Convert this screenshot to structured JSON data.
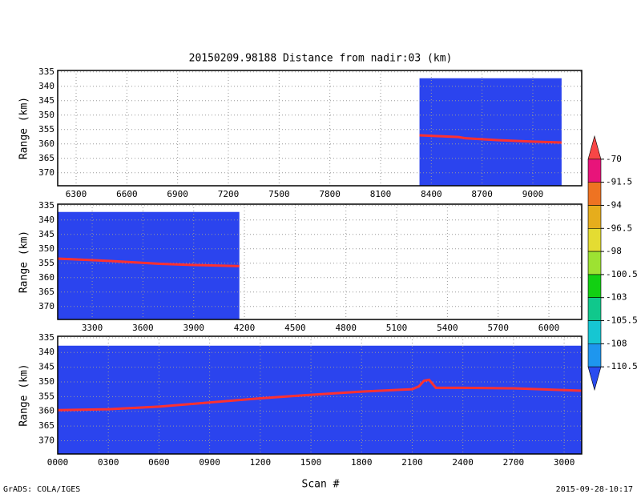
{
  "title": "20150209.98188    Distance from nadir:03 (km)",
  "x_label": "Scan #",
  "credit": "GrADS: COLA/IGES",
  "timestamp": "2015-09-28-10:17",
  "colorbar": {
    "levels": [
      -70,
      -91.5,
      -94,
      -96.5,
      -98,
      -100.5,
      -103,
      -105.5,
      -108,
      -110.5
    ],
    "colors": [
      "#f84646",
      "#e8147a",
      "#ee7322",
      "#e6ad1c",
      "#e4dc32",
      "#9de232",
      "#12d012",
      "#10c88c",
      "#16c6d2",
      "#1e96ee",
      "#2a4cf0"
    ]
  },
  "chart_data": [
    {
      "type": "line",
      "y_label": "Range (km)",
      "xlim": [
        6191,
        9289
      ],
      "xticks": [
        6300,
        6600,
        6900,
        7200,
        7500,
        7800,
        8100,
        8400,
        8700,
        9000
      ],
      "ylim": [
        334.5,
        374.5
      ],
      "yticks": [
        335,
        340,
        345,
        350,
        355,
        360,
        365,
        370
      ],
      "grid": true,
      "signal_region": {
        "xlim": [
          8330,
          9170
        ],
        "ylim": [
          337.2,
          374.5
        ],
        "color": "#2b44ee"
      },
      "series": [
        {
          "color": "#ff3030",
          "x": [
            8330,
            8560,
            8600,
            8800,
            9000,
            9170
          ],
          "values": [
            357,
            357.6,
            358,
            358.7,
            359.2,
            359.5
          ]
        }
      ]
    },
    {
      "type": "line",
      "y_label": "Range (km)",
      "xlim": [
        3096,
        6194
      ],
      "xticks": [
        3300,
        3600,
        3900,
        4200,
        4500,
        4800,
        5100,
        5400,
        5700,
        6000
      ],
      "ylim": [
        334.5,
        374.5
      ],
      "yticks": [
        335,
        340,
        345,
        350,
        355,
        360,
        365,
        370
      ],
      "grid": true,
      "signal_region": {
        "xlim": [
          3096,
          4170
        ],
        "ylim": [
          337.2,
          374.5
        ],
        "color": "#2b44ee"
      },
      "series": [
        {
          "color": "#ff3030",
          "x": [
            3096,
            3400,
            3700,
            3900,
            4170
          ],
          "values": [
            353.4,
            354.2,
            355.2,
            355.6,
            356
          ]
        }
      ]
    },
    {
      "type": "line",
      "y_label": "Range (km)",
      "xlim": [
        0,
        3104
      ],
      "xticks": [
        {
          "value": 0,
          "label": "0000"
        },
        {
          "value": 300,
          "label": "0300"
        },
        {
          "value": 600,
          "label": "0600"
        },
        {
          "value": 900,
          "label": "0900"
        },
        1200,
        1500,
        1800,
        2100,
        2400,
        2700,
        3000
      ],
      "ylim": [
        334.5,
        374.5
      ],
      "yticks": [
        335,
        340,
        345,
        350,
        355,
        360,
        365,
        370
      ],
      "grid": true,
      "signal_region": {
        "xlim": [
          0,
          3104
        ],
        "ylim": [
          337.7,
          374.5
        ],
        "color": "#2b44ee"
      },
      "series": [
        {
          "color": "#ff3030",
          "x": [
            0,
            300,
            600,
            900,
            1200,
            1500,
            1800,
            2100,
            2140,
            2170,
            2200,
            2240,
            2400,
            2700,
            3104
          ],
          "values": [
            359.6,
            359.3,
            358.4,
            357,
            355.6,
            354.4,
            353.3,
            352.5,
            351.5,
            349.6,
            349.3,
            352,
            352,
            352.2,
            353
          ]
        }
      ]
    }
  ]
}
